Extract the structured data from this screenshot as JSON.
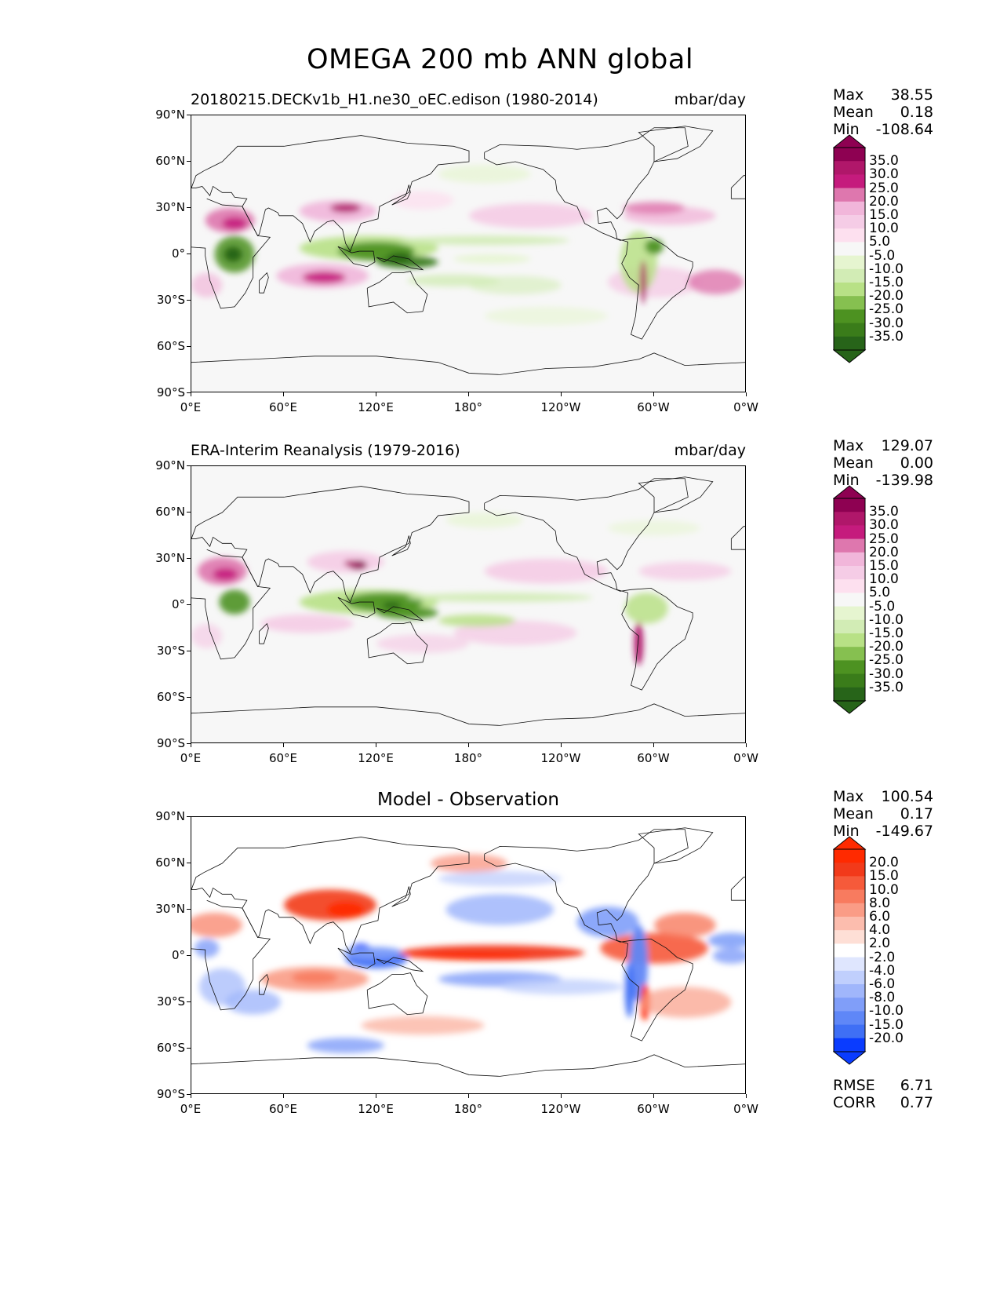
{
  "figure_title": "OMEGA 200 mb ANN global",
  "panels": [
    {
      "name": "model",
      "left_title": "20180215.DECKv1b_H1.ne30_oEC.edison (1980-2014)",
      "right_title": "mbar/day",
      "center_title": "",
      "stats": {
        "max_label": "Max",
        "max": "38.55",
        "mean_label": "Mean",
        "mean": "0.18",
        "min_label": "Min",
        "min": "-108.64"
      },
      "colorbar": {
        "levels": [
          "35.0",
          "30.0",
          "25.0",
          "20.0",
          "15.0",
          "10.0",
          "5.0",
          "-5.0",
          "-10.0",
          "-15.0",
          "-20.0",
          "-25.0",
          "-30.0",
          "-35.0"
        ],
        "colors": [
          "#8e0152",
          "#b0176a",
          "#c51b7d",
          "#de77ae",
          "#f1b6da",
          "#f5cce6",
          "#fde0ef",
          "#f7f7f7",
          "#e6f5d0",
          "#d2ecb5",
          "#b8e186",
          "#86c050",
          "#4d9221",
          "#3a7c1a",
          "#276419"
        ],
        "top_color": "#8e0152",
        "bottom_color": "#276419"
      }
    },
    {
      "name": "observation",
      "left_title": "ERA-Interim Reanalysis (1979-2016)",
      "right_title": "mbar/day",
      "center_title": "",
      "stats": {
        "max_label": "Max",
        "max": "129.07",
        "mean_label": "Mean",
        "mean": "0.00",
        "min_label": "Min",
        "min": "-139.98"
      },
      "colorbar": {
        "levels": [
          "35.0",
          "30.0",
          "25.0",
          "20.0",
          "15.0",
          "10.0",
          "5.0",
          "-5.0",
          "-10.0",
          "-15.0",
          "-20.0",
          "-25.0",
          "-30.0",
          "-35.0"
        ],
        "colors": [
          "#8e0152",
          "#b0176a",
          "#c51b7d",
          "#de77ae",
          "#f1b6da",
          "#f5cce6",
          "#fde0ef",
          "#f7f7f7",
          "#e6f5d0",
          "#d2ecb5",
          "#b8e186",
          "#86c050",
          "#4d9221",
          "#3a7c1a",
          "#276419"
        ],
        "top_color": "#8e0152",
        "bottom_color": "#276419"
      }
    },
    {
      "name": "difference",
      "left_title": "",
      "right_title": "",
      "center_title": "Model - Observation",
      "stats": {
        "max_label": "Max",
        "max": "100.54",
        "mean_label": "Mean",
        "mean": "0.17",
        "min_label": "Min",
        "min": "-149.67"
      },
      "extra_stats": {
        "rmse_label": "RMSE",
        "rmse": "6.71",
        "corr_label": "CORR",
        "corr": "0.77"
      },
      "colorbar": {
        "levels": [
          "20.0",
          "15.0",
          "10.0",
          "8.0",
          "6.0",
          "4.0",
          "2.0",
          "-2.0",
          "-4.0",
          "-6.0",
          "-8.0",
          "-10.0",
          "-15.0",
          "-20.0"
        ],
        "colors": [
          "#ff2a00",
          "#f23a1a",
          "#f65a3a",
          "#f87b5f",
          "#fa9c86",
          "#fcbdae",
          "#fedfd6",
          "#ffffff",
          "#dfe6fe",
          "#c0cffd",
          "#a0b6fb",
          "#809ef9",
          "#5f87f7",
          "#3f6ff5",
          "#0a3cff"
        ],
        "top_color": "#ff2a00",
        "bottom_color": "#0a3cff"
      }
    }
  ],
  "axes": {
    "y_ticks": [
      "90°N",
      "60°N",
      "30°N",
      "0°",
      "30°S",
      "60°S",
      "90°S"
    ],
    "x_ticks": [
      "0°E",
      "60°E",
      "120°E",
      "180°",
      "120°W",
      "60°W",
      "0°W"
    ]
  },
  "chart_data": {
    "type": "heatmap",
    "projection": "cylindrical equidistant",
    "lon_range": [
      0,
      360
    ],
    "lat_range": [
      -90,
      90
    ],
    "variable": "OMEGA 200 mb ANN global",
    "units": "mbar/day",
    "panels": [
      {
        "title": "20180215.DECKv1b_H1.ne30_oEC.edison (1980-2014)",
        "max": 38.55,
        "mean": 0.18,
        "min": -108.64
      },
      {
        "title": "ERA-Interim Reanalysis (1979-2016)",
        "max": 129.07,
        "mean": 0.0,
        "min": -139.98
      },
      {
        "title": "Model - Observation",
        "max": 100.54,
        "mean": 0.17,
        "min": -149.67,
        "rmse": 6.71,
        "corr": 0.77
      }
    ]
  }
}
